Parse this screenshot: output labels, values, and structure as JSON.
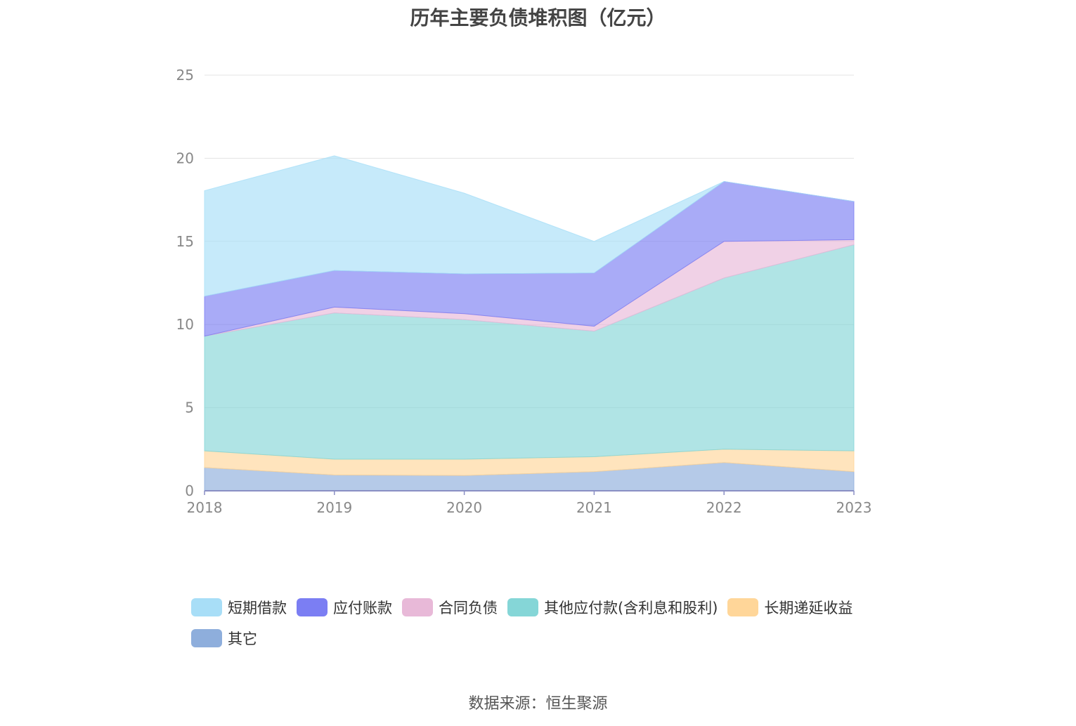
{
  "chart_data": {
    "type": "area",
    "stacked": true,
    "title": "历年主要负债堆积图（亿元）",
    "x": [
      "2018",
      "2019",
      "2020",
      "2021",
      "2022",
      "2023"
    ],
    "ylim": [
      0,
      25
    ],
    "yticks": [
      "0",
      "5",
      "10",
      "15",
      "20",
      "25"
    ],
    "grid": true,
    "legend_position": "bottom",
    "series": [
      {
        "name": "其它",
        "color": "#8eaedc",
        "values": [
          1.4,
          0.95,
          0.92,
          1.15,
          1.7,
          1.15
        ]
      },
      {
        "name": "长期递延收益",
        "color": "#ffd699",
        "values": [
          1.0,
          0.95,
          0.98,
          0.9,
          0.8,
          1.25
        ]
      },
      {
        "name": "其他应付款(含利息和股利)",
        "color": "#85d6d7",
        "values": [
          6.9,
          8.8,
          8.4,
          7.55,
          10.3,
          12.4
        ]
      },
      {
        "name": "合同负债",
        "color": "#e8b9d8",
        "values": [
          0.0,
          0.35,
          0.35,
          0.3,
          2.2,
          0.3
        ]
      },
      {
        "name": "应付账款",
        "color": "#7b7ef3",
        "values": [
          2.4,
          2.2,
          2.4,
          3.2,
          3.6,
          2.3
        ]
      },
      {
        "name": "短期借款",
        "color": "#a8def7",
        "values": [
          6.35,
          6.9,
          4.85,
          1.9,
          0.0,
          0.0
        ]
      }
    ]
  },
  "legend_order": [
    "短期借款",
    "应付账款",
    "合同负债",
    "其他应付款(含利息和股利)",
    "长期递延收益",
    "其它"
  ],
  "source": "数据来源：恒生聚源"
}
